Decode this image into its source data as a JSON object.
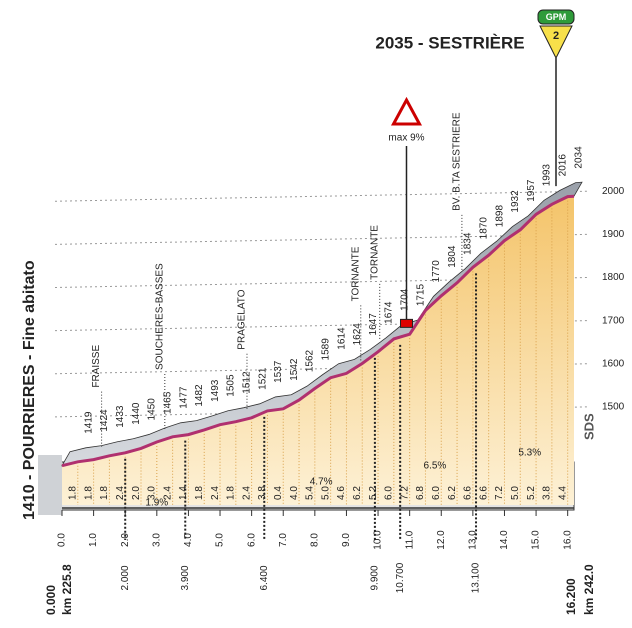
{
  "chart_data": {
    "type": "area",
    "title": "2035 - SESTRIÈRE",
    "badge": {
      "label": "GPM",
      "category": "2"
    },
    "start_label": "1410 - POURRIERES - Fine abitato",
    "start_km": "0.000",
    "start_race_km": "km 225.8",
    "end_km": "16.200",
    "end_race_km": "km 242.0",
    "logo": "SDS",
    "x": [
      0,
      0.5,
      1,
      1.5,
      2,
      2.5,
      3,
      3.5,
      4,
      4.5,
      5,
      5.5,
      6,
      6.5,
      7,
      7.5,
      8,
      8.5,
      9,
      9.5,
      10,
      10.5,
      11,
      11.5,
      12,
      12.5,
      13,
      13.5,
      14,
      14.5,
      15,
      15.5,
      16,
      16.2
    ],
    "values": [
      1410,
      1419,
      1424,
      1433,
      1440,
      1450,
      1465,
      1477,
      1482,
      1493,
      1505,
      1512,
      1521,
      1537,
      1542,
      1562,
      1589,
      1614,
      1624,
      1647,
      1674,
      1704,
      1715,
      1770,
      1804,
      1834,
      1870,
      1898,
      1932,
      1957,
      1993,
      2016,
      2034,
      2035
    ],
    "color": "#b0306f",
    "gradient_labels": [
      "1.8",
      "1.8",
      "1.8",
      "2.4",
      "2.0",
      "3.0",
      "2.4",
      "1.4",
      "1.8",
      "2.4",
      "1.8",
      "2.4",
      "3.8",
      "0.4",
      "4.0",
      "5.4",
      "5.0",
      "4.6",
      "6.2",
      "5.2",
      "6.0",
      "7.2",
      "6.8",
      "6.0",
      "6.2",
      "6.6",
      "6.6",
      "7.2",
      "5.0",
      "5.2",
      "3.8",
      "4.4"
    ],
    "average_gradients": [
      "1.9%",
      "4.7%",
      "6.5%",
      "5.3%"
    ],
    "places": [
      "FRAISSE",
      "SOUCHERES-BASSES",
      "PRAGELATO",
      "TORNANTE",
      "TORNANTE",
      "BV. B.TA SESTRIERE"
    ],
    "max_gradient": "max 9%",
    "distance_markers": [
      {
        "value": 2.0,
        "label": "2.000"
      },
      {
        "value": 3.9,
        "label": "3.900"
      },
      {
        "value": 6.4,
        "label": "6.400"
      },
      {
        "value": 9.9,
        "label": "9.900"
      },
      {
        "value": 10.7,
        "label": "10.700"
      },
      {
        "value": 13.1,
        "label": "13.100"
      }
    ],
    "xlim": [
      0,
      16.2
    ],
    "xticks": [
      {
        "value": 0,
        "label": "0.0"
      },
      {
        "value": 1,
        "label": "1.0"
      },
      {
        "value": 2,
        "label": "2.0"
      },
      {
        "value": 3,
        "label": "3.0"
      },
      {
        "value": 4,
        "label": "4.0"
      },
      {
        "value": 5,
        "label": "5.0"
      },
      {
        "value": 6,
        "label": "6.0"
      },
      {
        "value": 7,
        "label": "7.0"
      },
      {
        "value": 8,
        "label": "8.0"
      },
      {
        "value": 9,
        "label": "9.0"
      },
      {
        "value": 10,
        "label": "10.0"
      },
      {
        "value": 11,
        "label": "11.0"
      },
      {
        "value": 12,
        "label": "12.0"
      },
      {
        "value": 13,
        "label": "13.0"
      },
      {
        "value": 14,
        "label": "14.0"
      },
      {
        "value": 15,
        "label": "15.0"
      },
      {
        "value": 16,
        "label": "16.0"
      }
    ],
    "ylim": [
      1400,
      2040
    ],
    "yticks": [
      1500,
      1600,
      1700,
      1800,
      1900,
      2000
    ],
    "grid": true
  }
}
